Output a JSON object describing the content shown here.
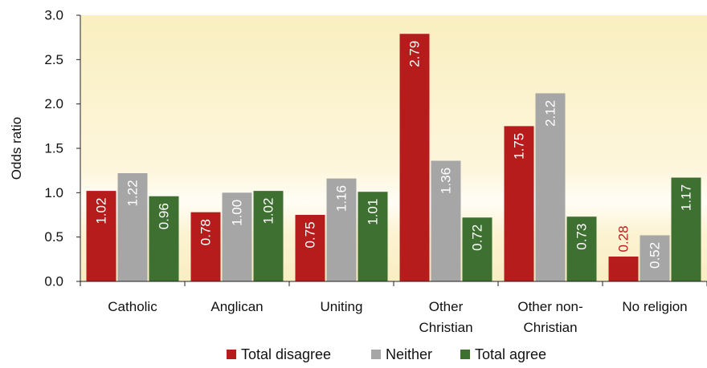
{
  "chart_data": {
    "type": "bar",
    "ylabel": "Odds ratio",
    "ylim": [
      0,
      3
    ],
    "yticks": [
      "0.0",
      "0.5",
      "1.0",
      "1.5",
      "2.0",
      "2.5",
      "3.0"
    ],
    "categories": [
      [
        "Catholic"
      ],
      [
        "Anglican"
      ],
      [
        "Uniting"
      ],
      [
        "Other",
        "Christian"
      ],
      [
        "Other non-",
        "Christian"
      ],
      [
        "No religion"
      ]
    ],
    "series": [
      {
        "name": "Total disagree",
        "color": "#b71c1c",
        "values": [
          1.02,
          0.78,
          0.75,
          2.79,
          1.75,
          0.28
        ],
        "labels": [
          "1.02",
          "0.78",
          "0.75",
          "2.79",
          "1.75",
          "0.28"
        ]
      },
      {
        "name": "Neither",
        "color": "#a6a6a6",
        "values": [
          1.22,
          1.0,
          1.16,
          1.36,
          2.12,
          0.52
        ],
        "labels": [
          "1.22",
          "1.00",
          "1.16",
          "1.36",
          "2.12",
          "0.52"
        ]
      },
      {
        "name": "Total agree",
        "color": "#3d7031",
        "values": [
          0.96,
          1.02,
          1.01,
          0.72,
          0.73,
          1.17
        ],
        "labels": [
          "0.96",
          "1.02",
          "1.01",
          "0.72",
          "0.73",
          "1.17"
        ]
      }
    ],
    "legend_position": "bottom",
    "background": "pale yellow gradient, brightest near 1.0",
    "grid": false
  }
}
